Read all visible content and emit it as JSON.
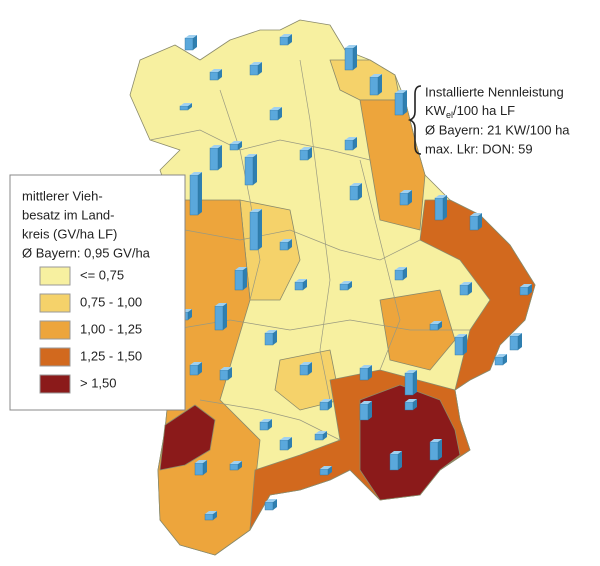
{
  "legend": {
    "title_lines": [
      "mittlerer Vieh-",
      "besatz im Land-",
      "kreis (GV/ha LF)",
      "Ø Bayern: 0,95 GV/ha"
    ],
    "entries": [
      "<= 0,75",
      "0,75 - 1,00",
      "1,00 - 1,25",
      "1,25 - 1,50",
      "> 1,50"
    ]
  },
  "annotation": {
    "line1": "Installierte Nennleistung",
    "line2_main": "KW",
    "line2_sub": "el",
    "line2_rest": "/100 ha LF",
    "line3": "Ø Bayern: 21 KW/100 ha",
    "line4": "max. Lkr: DON: 59"
  }
}
